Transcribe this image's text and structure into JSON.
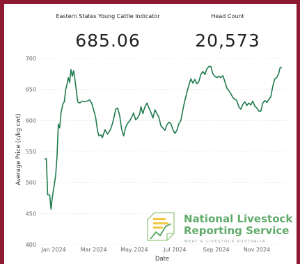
{
  "kpis": [
    {
      "label": "Eastern States Young Cattle Indicator",
      "value": "685.06"
    },
    {
      "label": "Head Count",
      "value": "20,573"
    }
  ],
  "logo": {
    "line1": "National Livestock",
    "line2": "Reporting Service",
    "tagline": "MEAT & LIVESTOCK AUSTRALIA",
    "colors": {
      "green": "#3f9a4b",
      "yellow": "#f2c230",
      "slate": "#7a8d97"
    }
  },
  "colors": {
    "line": "#1e7a4c",
    "border": "#8b1a32"
  },
  "chart_data": {
    "type": "line",
    "title": "",
    "xlabel": "Date",
    "ylabel": "Average Price (c/kg cwt)",
    "ylim": [
      400,
      700
    ],
    "y_ticks": [
      400,
      450,
      500,
      550,
      600,
      650,
      700
    ],
    "x_ticks": [
      {
        "date": "2024-01-01",
        "label": "Jan 2024"
      },
      {
        "date": "2024-03-01",
        "label": "Mar 2024"
      },
      {
        "date": "2024-05-01",
        "label": "May 2024"
      },
      {
        "date": "2024-07-01",
        "label": "Jul 2024"
      },
      {
        "date": "2024-09-01",
        "label": "Sep 2024"
      },
      {
        "date": "2024-11-01",
        "label": "Nov 2024"
      }
    ],
    "grid": true,
    "legend": "none",
    "series": [
      {
        "points": [
          [
            "2023-12-19",
            538
          ],
          [
            "2023-12-21",
            538
          ],
          [
            "2023-12-23",
            480
          ],
          [
            "2023-12-26",
            480
          ],
          [
            "2023-12-28",
            457
          ],
          [
            "2023-12-30",
            476
          ],
          [
            "2024-01-02",
            497
          ],
          [
            "2024-01-04",
            512
          ],
          [
            "2024-01-06",
            541
          ],
          [
            "2024-01-08",
            594
          ],
          [
            "2024-01-10",
            588
          ],
          [
            "2024-01-12",
            612
          ],
          [
            "2024-01-15",
            627
          ],
          [
            "2024-01-17",
            630
          ],
          [
            "2024-01-19",
            650
          ],
          [
            "2024-01-21",
            658
          ],
          [
            "2024-01-23",
            669
          ],
          [
            "2024-01-25",
            661
          ],
          [
            "2024-01-27",
            682
          ],
          [
            "2024-01-29",
            671
          ],
          [
            "2024-01-31",
            680
          ],
          [
            "2024-02-02",
            665
          ],
          [
            "2024-02-04",
            648
          ],
          [
            "2024-02-06",
            630
          ],
          [
            "2024-02-09",
            628
          ],
          [
            "2024-02-13",
            631
          ],
          [
            "2024-02-16",
            630
          ],
          [
            "2024-02-20",
            631
          ],
          [
            "2024-02-24",
            633
          ],
          [
            "2024-02-27",
            628
          ],
          [
            "2024-03-01",
            617
          ],
          [
            "2024-03-04",
            605
          ],
          [
            "2024-03-07",
            582
          ],
          [
            "2024-03-09",
            575
          ],
          [
            "2024-03-12",
            577
          ],
          [
            "2024-03-14",
            572
          ],
          [
            "2024-03-18",
            585
          ],
          [
            "2024-03-22",
            578
          ],
          [
            "2024-03-26",
            585
          ],
          [
            "2024-03-29",
            594
          ],
          [
            "2024-04-01",
            607
          ],
          [
            "2024-04-03",
            618
          ],
          [
            "2024-04-06",
            620
          ],
          [
            "2024-04-09",
            608
          ],
          [
            "2024-04-12",
            586
          ],
          [
            "2024-04-15",
            575
          ],
          [
            "2024-04-18",
            589
          ],
          [
            "2024-04-21",
            595
          ],
          [
            "2024-04-24",
            599
          ],
          [
            "2024-04-27",
            605
          ],
          [
            "2024-04-30",
            612
          ],
          [
            "2024-05-03",
            601
          ],
          [
            "2024-05-06",
            604
          ],
          [
            "2024-05-09",
            610
          ],
          [
            "2024-05-11",
            622
          ],
          [
            "2024-05-14",
            611
          ],
          [
            "2024-05-17",
            622
          ],
          [
            "2024-05-20",
            628
          ],
          [
            "2024-05-23",
            620
          ],
          [
            "2024-05-26",
            613
          ],
          [
            "2024-05-29",
            604
          ],
          [
            "2024-06-01",
            617
          ],
          [
            "2024-06-04",
            611
          ],
          [
            "2024-06-07",
            605
          ],
          [
            "2024-06-10",
            591
          ],
          [
            "2024-06-13",
            588
          ],
          [
            "2024-06-16",
            584
          ],
          [
            "2024-06-19",
            593
          ],
          [
            "2024-06-22",
            597
          ],
          [
            "2024-06-25",
            595
          ],
          [
            "2024-06-28",
            585
          ],
          [
            "2024-07-01",
            579
          ],
          [
            "2024-07-04",
            584
          ],
          [
            "2024-07-07",
            595
          ],
          [
            "2024-07-10",
            600
          ],
          [
            "2024-07-13",
            617
          ],
          [
            "2024-07-16",
            632
          ],
          [
            "2024-07-19",
            645
          ],
          [
            "2024-07-22",
            657
          ],
          [
            "2024-07-25",
            667
          ],
          [
            "2024-07-28",
            660
          ],
          [
            "2024-07-31",
            666
          ],
          [
            "2024-08-03",
            659
          ],
          [
            "2024-08-06",
            663
          ],
          [
            "2024-08-09",
            674
          ],
          [
            "2024-08-12",
            679
          ],
          [
            "2024-08-15",
            674
          ],
          [
            "2024-08-18",
            683
          ],
          [
            "2024-08-21",
            687
          ],
          [
            "2024-08-24",
            687
          ],
          [
            "2024-08-27",
            675
          ],
          [
            "2024-08-30",
            671
          ],
          [
            "2024-09-02",
            669
          ],
          [
            "2024-09-05",
            671
          ],
          [
            "2024-09-08",
            669
          ],
          [
            "2024-09-11",
            672
          ],
          [
            "2024-09-14",
            663
          ],
          [
            "2024-09-17",
            652
          ],
          [
            "2024-09-20",
            648
          ],
          [
            "2024-09-23",
            643
          ],
          [
            "2024-09-26",
            637
          ],
          [
            "2024-09-29",
            634
          ],
          [
            "2024-10-02",
            632
          ],
          [
            "2024-10-05",
            622
          ],
          [
            "2024-10-08",
            618
          ],
          [
            "2024-10-11",
            626
          ],
          [
            "2024-10-14",
            630
          ],
          [
            "2024-10-17",
            624
          ],
          [
            "2024-10-20",
            628
          ],
          [
            "2024-10-23",
            625
          ],
          [
            "2024-10-26",
            631
          ],
          [
            "2024-10-29",
            623
          ],
          [
            "2024-11-01",
            620
          ],
          [
            "2024-11-04",
            615
          ],
          [
            "2024-11-07",
            615
          ],
          [
            "2024-11-10",
            628
          ],
          [
            "2024-11-13",
            632
          ],
          [
            "2024-11-16",
            629
          ],
          [
            "2024-11-19",
            634
          ],
          [
            "2024-11-22",
            638
          ],
          [
            "2024-11-25",
            655
          ],
          [
            "2024-11-28",
            667
          ],
          [
            "2024-12-01",
            669
          ],
          [
            "2024-12-04",
            676
          ],
          [
            "2024-12-06",
            685
          ],
          [
            "2024-12-08",
            685
          ]
        ]
      }
    ]
  }
}
